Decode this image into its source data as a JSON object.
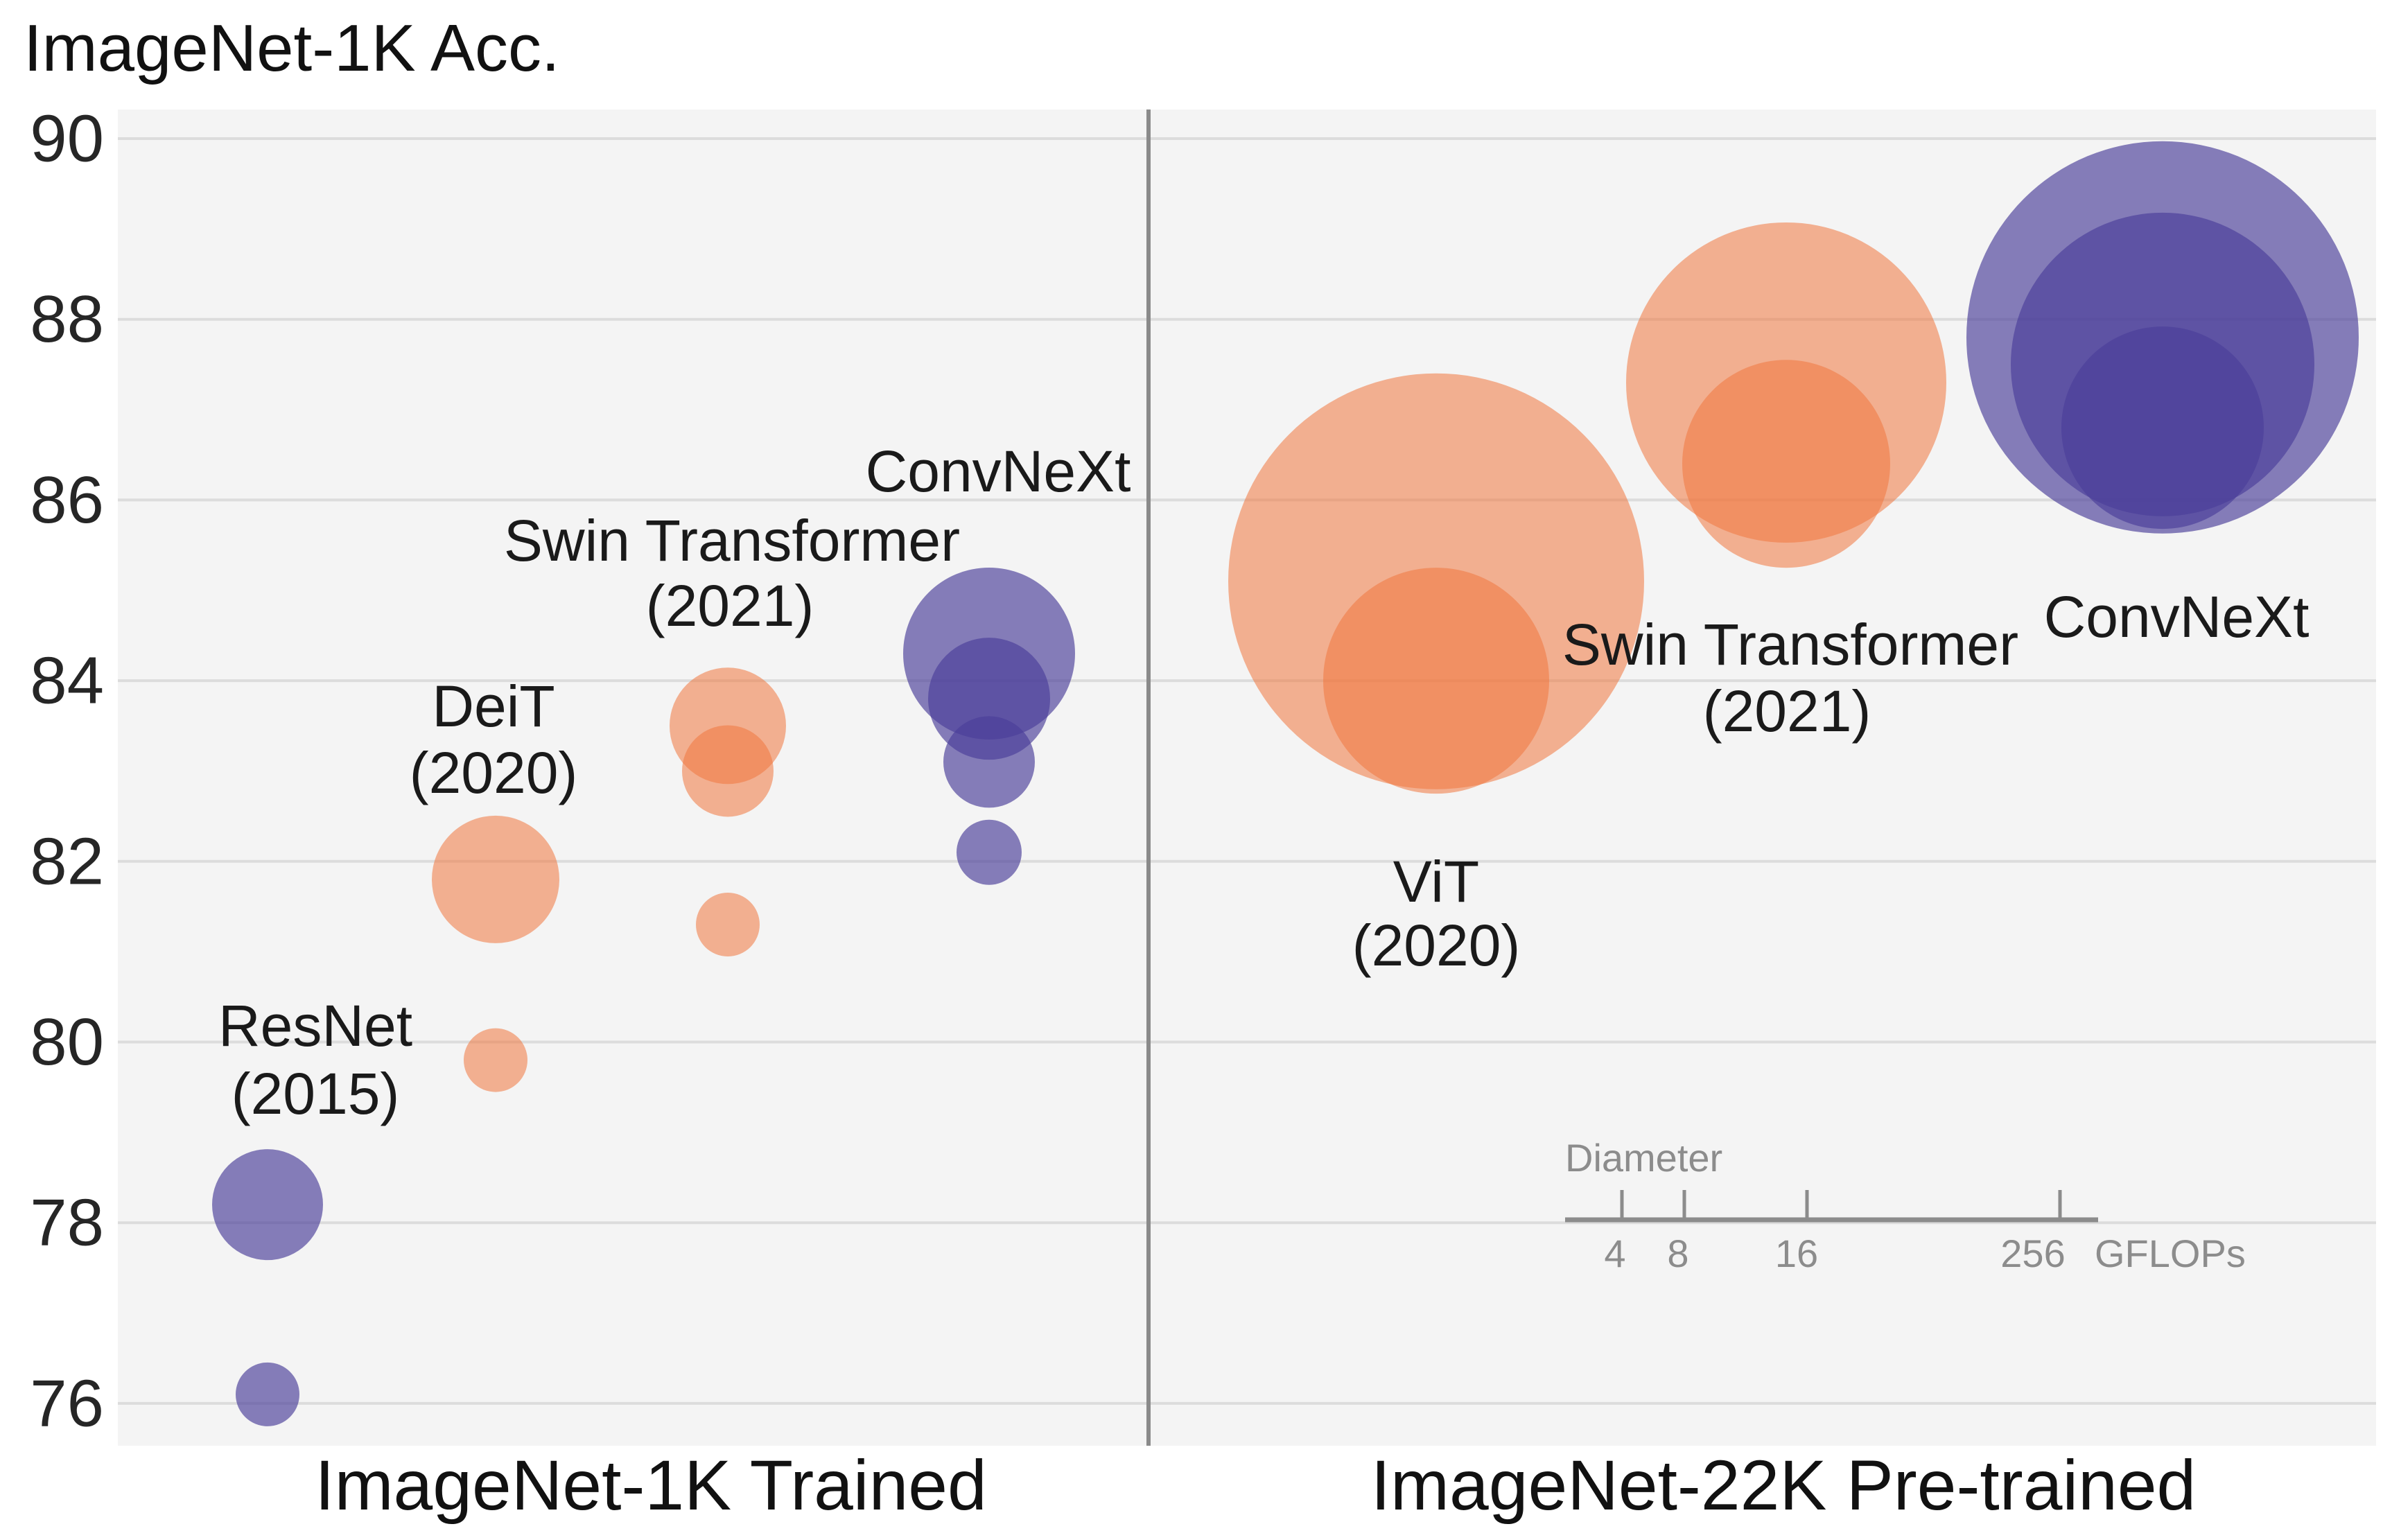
{
  "colors": {
    "plot_background": "#f4f4f4",
    "gridline": "#dcdcdc",
    "divider": "#8a8a8a",
    "orange": "#f0763e",
    "orange_opacity": 0.55,
    "purple": "#4a3e99",
    "purple_opacity": 0.66,
    "text_dark": "#1a1a1a",
    "legend_gray": "#8c8c8c"
  },
  "chart_data": {
    "type": "bubble",
    "ylabel": "ImageNet-1K Acc.",
    "ylim": [
      75.5,
      90.3
    ],
    "yticks": [
      "90",
      "88",
      "86",
      "84",
      "82",
      "80",
      "78",
      "76"
    ],
    "ytick_values": [
      90,
      88,
      86,
      84,
      82,
      80,
      78,
      76
    ],
    "grid": "horizontal-only",
    "panels": [
      {
        "label": "ImageNet-1K Trained"
      },
      {
        "label": "ImageNet-22K Pre-trained"
      }
    ],
    "size_legend": {
      "title": "Diameter",
      "tick_labels": [
        "4",
        "8",
        "16",
        "256"
      ],
      "unit": "GFLOPs"
    },
    "groups": [
      {
        "id": "resnet",
        "label": "ResNet",
        "sublabel": "(2015)",
        "color": "purple",
        "panel": 0,
        "points": [
          {
            "acc": 78.2,
            "r": 80
          },
          {
            "acc": 76.1,
            "r": 46
          }
        ]
      },
      {
        "id": "deit",
        "label": "DeiT",
        "sublabel": "(2020)",
        "color": "orange",
        "panel": 0,
        "points": [
          {
            "acc": 81.8,
            "r": 92
          },
          {
            "acc": 79.8,
            "r": 46
          }
        ]
      },
      {
        "id": "swin1k",
        "label": "Swin Transformer",
        "sublabel": "(2021)",
        "color": "orange",
        "panel": 0,
        "points": [
          {
            "acc": 83.5,
            "r": 84
          },
          {
            "acc": 83.0,
            "r": 66
          },
          {
            "acc": 81.3,
            "r": 46
          }
        ]
      },
      {
        "id": "convnext1k",
        "label": "ConvNeXt",
        "sublabel": "",
        "color": "purple",
        "panel": 0,
        "points": [
          {
            "acc": 84.3,
            "r": 124
          },
          {
            "acc": 83.8,
            "r": 88
          },
          {
            "acc": 83.1,
            "r": 66
          },
          {
            "acc": 82.1,
            "r": 47
          }
        ]
      },
      {
        "id": "vit",
        "label": "ViT",
        "sublabel": "(2020)",
        "color": "orange",
        "panel": 1,
        "points": [
          {
            "acc": 85.1,
            "r": 300
          },
          {
            "acc": 84.0,
            "r": 163
          }
        ]
      },
      {
        "id": "swin22k",
        "label": "Swin Transformer",
        "sublabel": "(2021)",
        "color": "orange",
        "panel": 1,
        "points": [
          {
            "acc": 87.3,
            "r": 231
          },
          {
            "acc": 86.4,
            "r": 150
          }
        ]
      },
      {
        "id": "convnext22k",
        "label": "ConvNeXt",
        "sublabel": "",
        "color": "purple",
        "panel": 1,
        "points": [
          {
            "acc": 87.8,
            "r": 283
          },
          {
            "acc": 87.5,
            "r": 219
          },
          {
            "acc": 86.8,
            "r": 146
          }
        ]
      }
    ]
  }
}
